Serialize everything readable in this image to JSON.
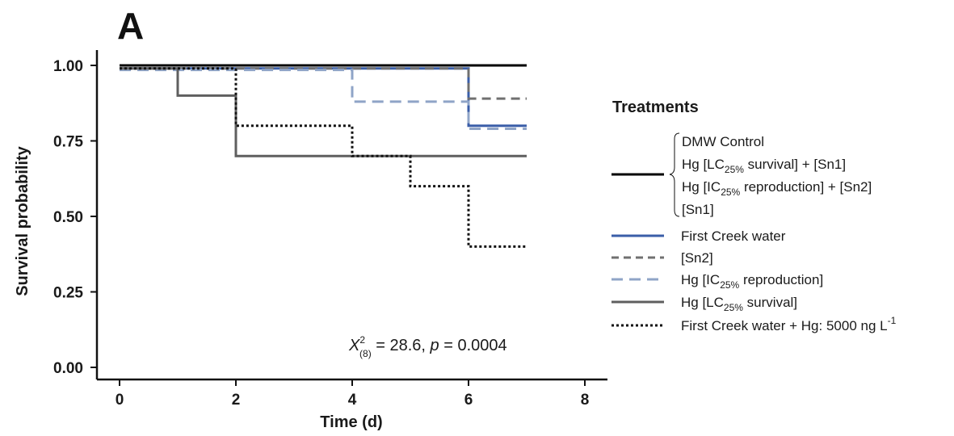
{
  "chart_data": {
    "type": "line",
    "subtype": "kaplan-meier step survival curves",
    "panel_label": "A",
    "xlabel": "Time (d)",
    "ylabel": "Survival probability",
    "xlim": [
      -0.5,
      8.3
    ],
    "ylim": [
      0,
      1.02
    ],
    "x_ticks": [
      0,
      2,
      4,
      6,
      8
    ],
    "y_ticks": [
      0.0,
      0.25,
      0.5,
      0.75,
      1.0
    ],
    "x_tick_labels": [
      "0",
      "2",
      "4",
      "6",
      "8"
    ],
    "y_tick_labels": [
      "0.00",
      "0.25",
      "0.50",
      "0.75",
      "1.00"
    ],
    "grid": false,
    "legend_position": "right",
    "annotation": {
      "prefix": "X",
      "sup": "2",
      "sub": "(8)",
      "value_part": " = 28.6, ",
      "p_symbol": "p",
      "p_part": " = 0.0004"
    },
    "legend": {
      "title": "Treatments",
      "group_entries": [
        "DMW Control",
        "Hg [LC25% survival]  + [Sn1]",
        "Hg [IC25% reproduction] + [Sn2]",
        "[Sn1]"
      ],
      "entries": [
        "First Creek water",
        "[Sn2]",
        "Hg [IC25% reproduction]",
        "Hg [LC25% survival]",
        "First Creek water  + Hg: 5000 ng L-1"
      ]
    },
    "series": [
      {
        "name": "DMW Control; Hg [LC25% survival] + [Sn1]; Hg [IC25% reproduction] + [Sn2]; [Sn1]",
        "color": "#000000",
        "dash": "solid",
        "x": [
          0,
          7
        ],
        "y": [
          1.0,
          1.0
        ]
      },
      {
        "name": "First Creek water",
        "color": "#3a5ea8",
        "dash": "solid",
        "x": [
          0,
          6,
          6,
          7
        ],
        "y": [
          0.99,
          0.99,
          0.8,
          0.8
        ]
      },
      {
        "name": "[Sn2]",
        "color": "#707070",
        "dash": "dashed",
        "x": [
          0,
          6,
          6,
          7
        ],
        "y": [
          0.99,
          0.99,
          0.89,
          0.89
        ]
      },
      {
        "name": "Hg [IC25% reproduction]",
        "color": "#8fa4c7",
        "dash": "dashed",
        "x": [
          0,
          4,
          4,
          6,
          6,
          7
        ],
        "y": [
          0.985,
          0.985,
          0.88,
          0.88,
          0.79,
          0.79
        ]
      },
      {
        "name": "Hg [LC25% survival]",
        "color": "#5f5f5f",
        "dash": "solid",
        "x": [
          0,
          1,
          1,
          2,
          2,
          7
        ],
        "y": [
          0.99,
          0.99,
          0.9,
          0.9,
          0.7,
          0.7
        ]
      },
      {
        "name": "First Creek water + Hg: 5000 ng L-1",
        "color": "#111111",
        "dash": "dotted",
        "x": [
          0,
          1,
          2,
          2,
          4,
          4,
          5,
          5,
          6,
          6,
          7
        ],
        "y": [
          0.99,
          0.99,
          0.99,
          0.8,
          0.8,
          0.7,
          0.7,
          0.6,
          0.6,
          0.4,
          0.4
        ]
      }
    ]
  }
}
